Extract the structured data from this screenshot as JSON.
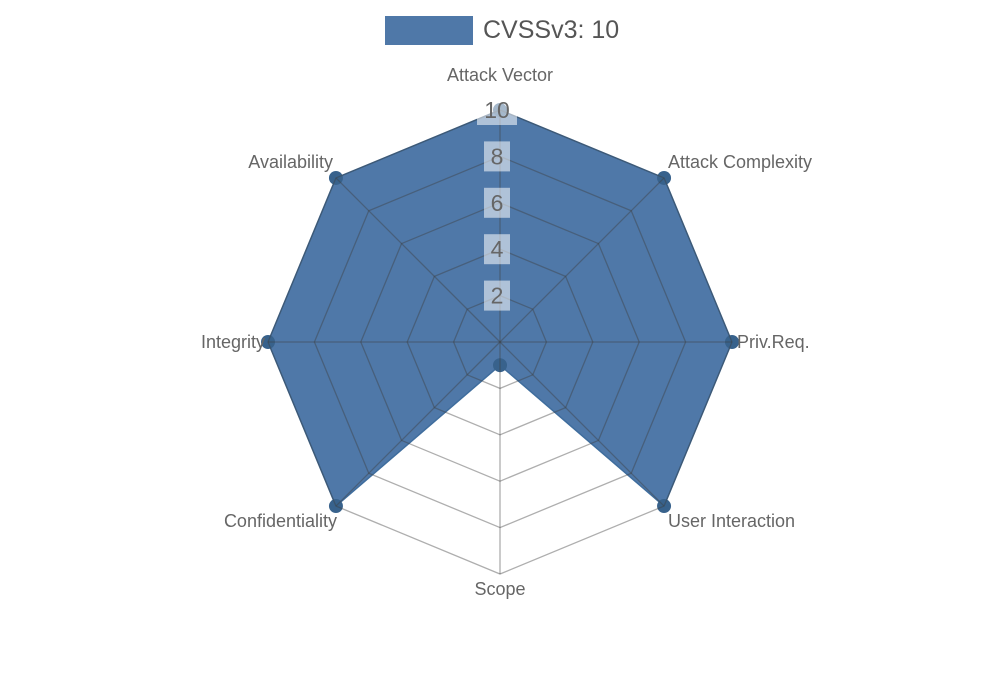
{
  "chart_data": {
    "type": "radar",
    "title": "",
    "legend": {
      "label": "CVSSv3: 10",
      "position": "top-center"
    },
    "categories": [
      "Attack Vector",
      "Attack Complexity",
      "Priv.Req.",
      "User Interaction",
      "Scope",
      "Confidentiality",
      "Integrity",
      "Availability"
    ],
    "series": [
      {
        "name": "CVSSv3: 10",
        "values": [
          10,
          10,
          10,
          10,
          1,
          10,
          10,
          10
        ]
      }
    ],
    "radial_axis": {
      "range": [
        0,
        10
      ],
      "ticks": [
        2,
        4,
        6,
        8,
        10
      ],
      "tick_labels": [
        "2",
        "4",
        "6",
        "8",
        "10"
      ]
    },
    "grid": {
      "shape": "polygon",
      "visible": true
    },
    "colors": {
      "fill": "#4F78A8",
      "line": "#3F6D9D",
      "marker": "#38628C",
      "grid_line": "rgba(62,62,62,0.42)",
      "tick_box": "rgba(255,255,255,0.55)",
      "tick_text": "#666666",
      "category_label": "#666666",
      "legend_text": "#555555"
    }
  }
}
